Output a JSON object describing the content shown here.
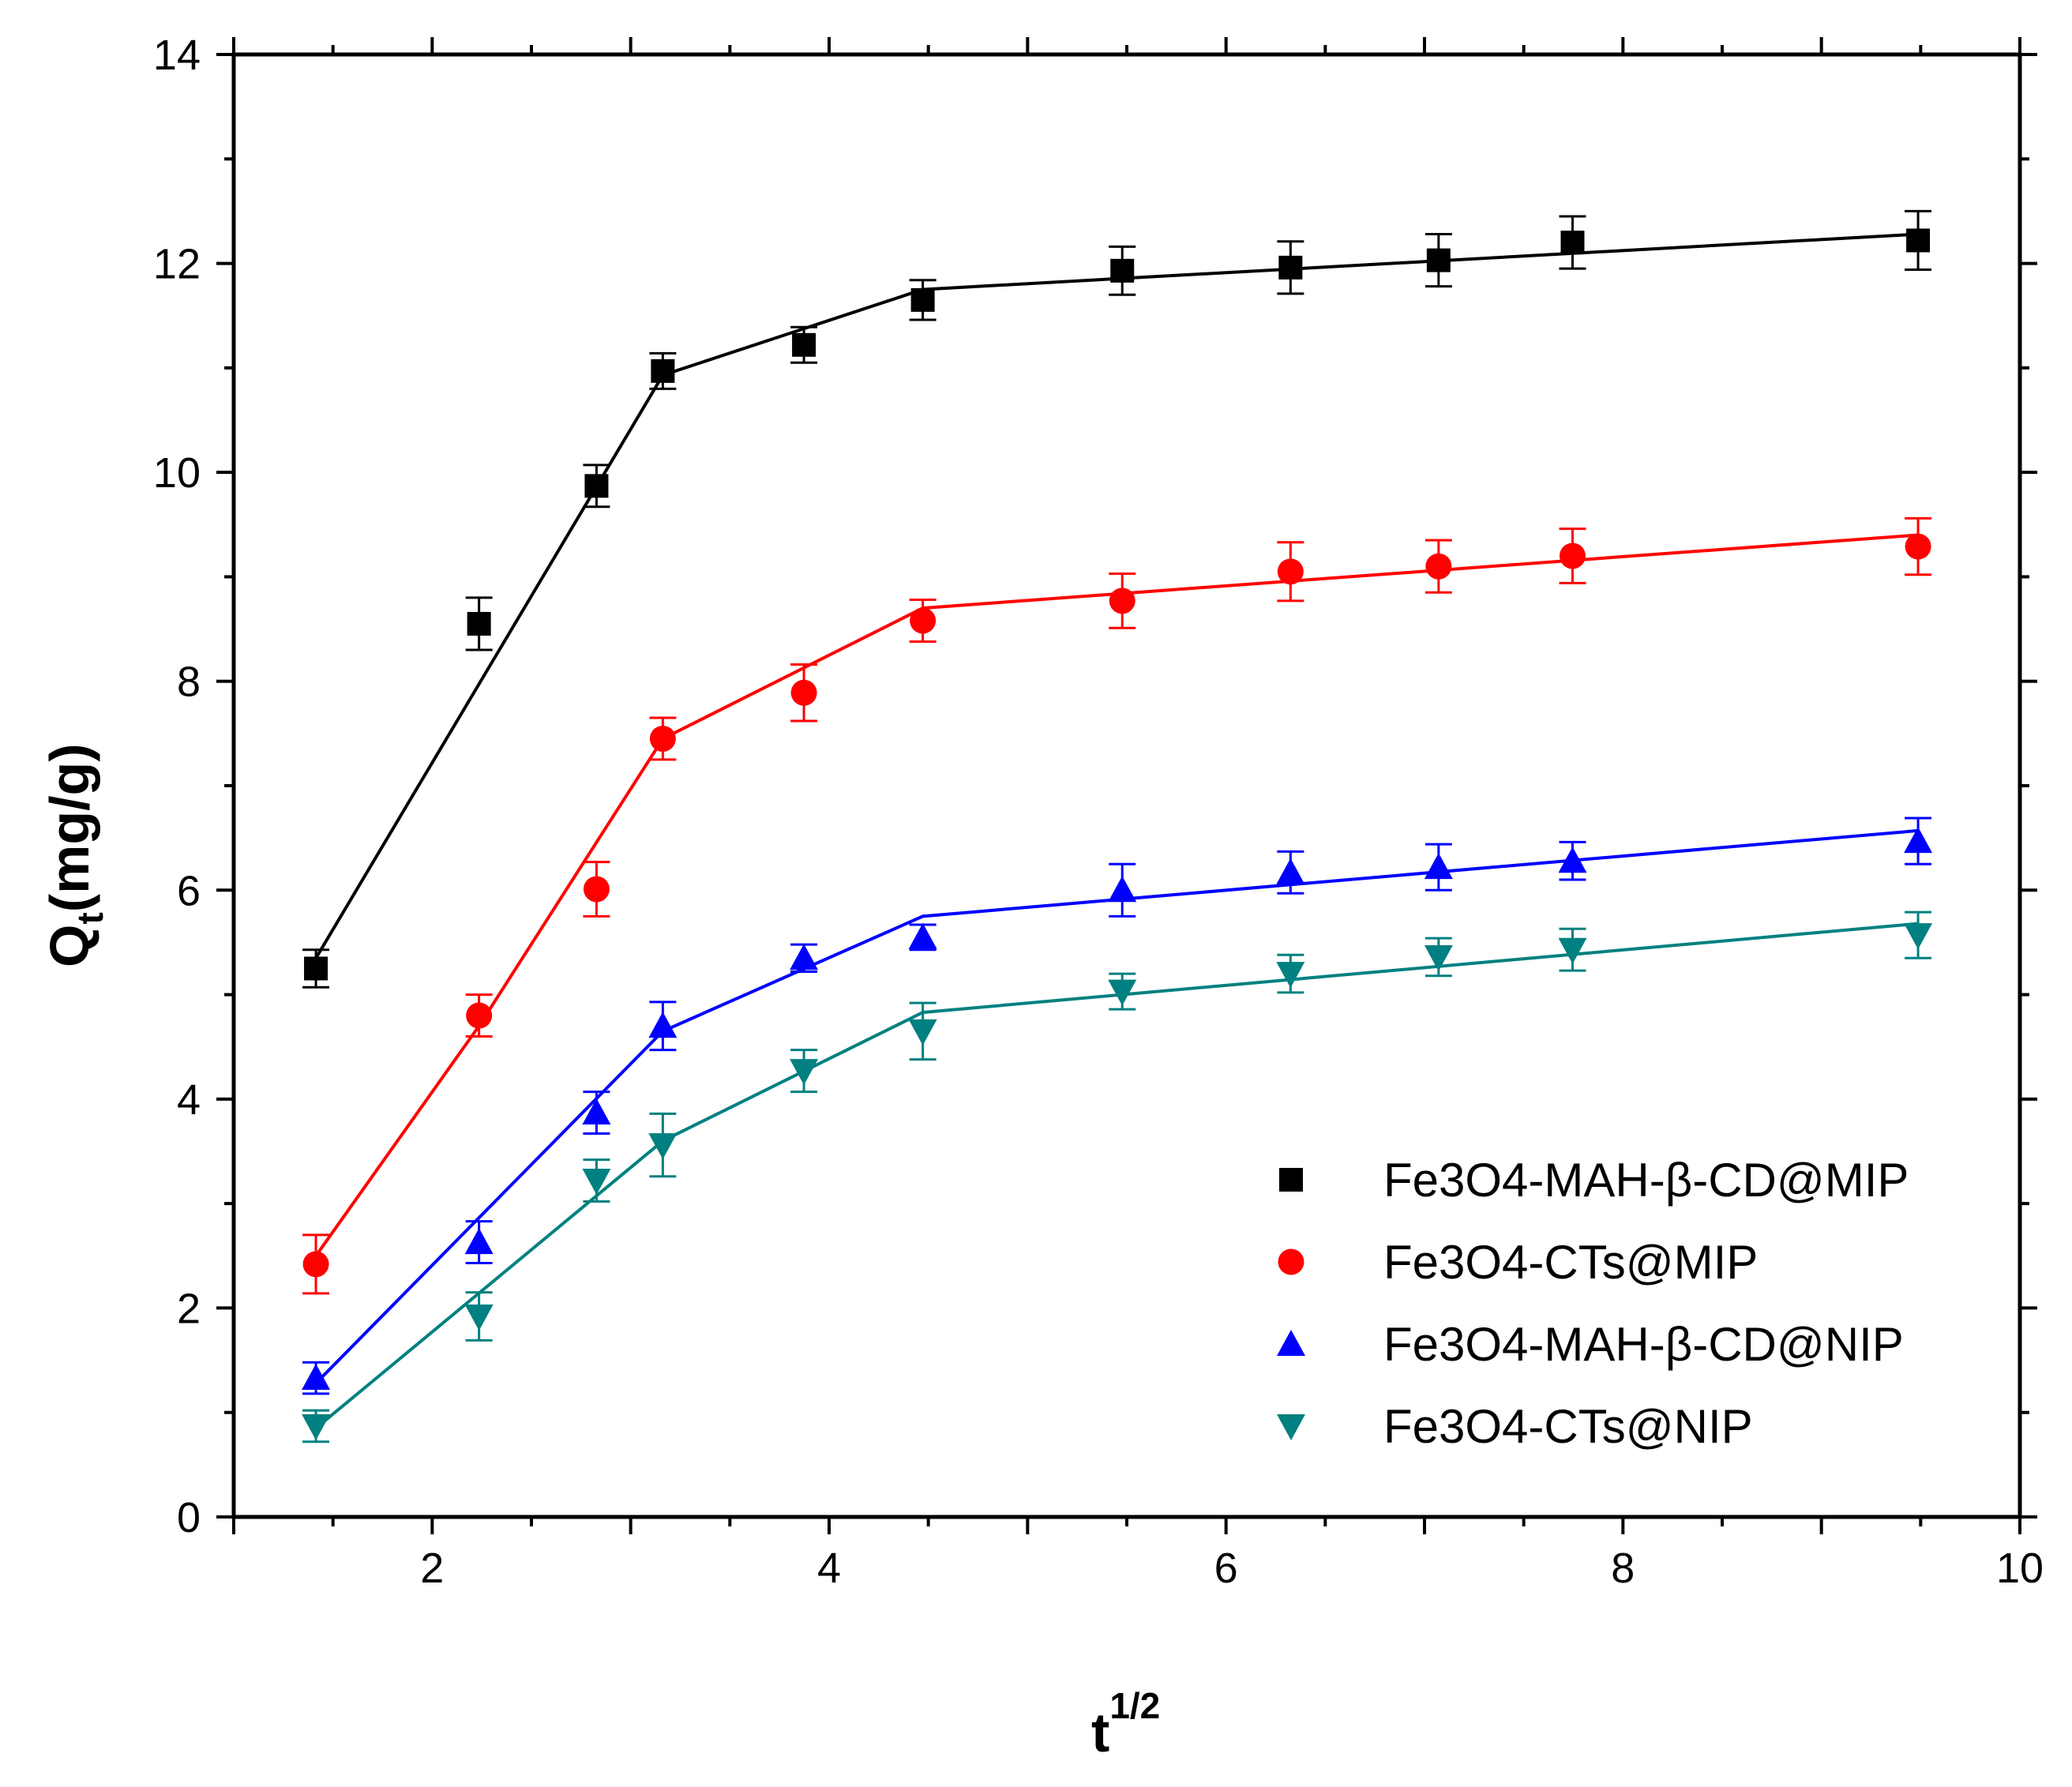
{
  "chart_data": {
    "type": "scatter",
    "title": "",
    "xlabel": "t",
    "xlabel_superscript": "1/2",
    "ylabel": "Q",
    "ylabel_subscript": "t",
    "ylabel_unit": "(mg/g)",
    "xlim": [
      1,
      10
    ],
    "ylim": [
      0,
      14
    ],
    "x_ticks": [
      2,
      4,
      6,
      8,
      10
    ],
    "y_ticks": [
      0,
      2,
      4,
      6,
      8,
      10,
      12,
      14
    ],
    "grid": false,
    "legend_position": "bottom-right",
    "x": [
      1.414,
      2.236,
      2.828,
      3.162,
      3.873,
      4.472,
      5.477,
      6.325,
      7.071,
      7.746,
      9.487
    ],
    "series": [
      {
        "name": "Fe3O4-MAH-β-CD@MIP",
        "color": "#000000",
        "marker": "square",
        "values": [
          5.25,
          8.55,
          9.87,
          10.97,
          11.22,
          11.65,
          11.93,
          11.96,
          12.03,
          12.2,
          12.22
        ],
        "errors": [
          0.18,
          0.25,
          0.2,
          0.17,
          0.17,
          0.19,
          0.23,
          0.25,
          0.25,
          0.25,
          0.28
        ],
        "fit": [
          [
            1.414,
            5.35
          ],
          [
            3.162,
            10.93
          ],
          [
            4.472,
            11.75
          ],
          [
            9.487,
            12.28
          ]
        ]
      },
      {
        "name": "Fe3O4-CTs@MIP",
        "color": "#ff0000",
        "marker": "circle",
        "values": [
          2.42,
          4.8,
          6.01,
          7.45,
          7.89,
          8.58,
          8.77,
          9.05,
          9.1,
          9.2,
          9.29
        ],
        "errors": [
          0.28,
          0.2,
          0.26,
          0.2,
          0.27,
          0.2,
          0.26,
          0.28,
          0.25,
          0.26,
          0.27
        ],
        "fit": [
          [
            1.414,
            2.5
          ],
          [
            2.236,
            4.7
          ],
          [
            3.162,
            7.45
          ],
          [
            4.472,
            8.7
          ],
          [
            9.487,
            9.4
          ]
        ]
      },
      {
        "name": "Fe3O4-MAH-β-CD@NIP",
        "color": "#0000ff",
        "marker": "triangle-up",
        "values": [
          1.33,
          2.63,
          3.87,
          4.7,
          5.35,
          5.55,
          6.0,
          6.17,
          6.22,
          6.28,
          6.47
        ],
        "errors": [
          0.15,
          0.2,
          0.2,
          0.23,
          0.13,
          0.12,
          0.25,
          0.2,
          0.22,
          0.18,
          0.22
        ],
        "fit": [
          [
            1.414,
            1.28
          ],
          [
            3.162,
            4.65
          ],
          [
            4.472,
            5.75
          ],
          [
            9.487,
            6.57
          ]
        ]
      },
      {
        "name": "Fe3O4-CTs@NIP",
        "color": "#008080",
        "marker": "triangle-down",
        "values": [
          0.87,
          1.92,
          3.22,
          3.56,
          4.27,
          4.65,
          5.03,
          5.2,
          5.36,
          5.43,
          5.57
        ],
        "errors": [
          0.15,
          0.23,
          0.2,
          0.3,
          0.2,
          0.27,
          0.17,
          0.18,
          0.18,
          0.2,
          0.22
        ],
        "fit": [
          [
            1.414,
            0.85
          ],
          [
            3.162,
            3.6
          ],
          [
            4.472,
            4.83
          ],
          [
            9.487,
            5.68
          ]
        ]
      }
    ]
  }
}
